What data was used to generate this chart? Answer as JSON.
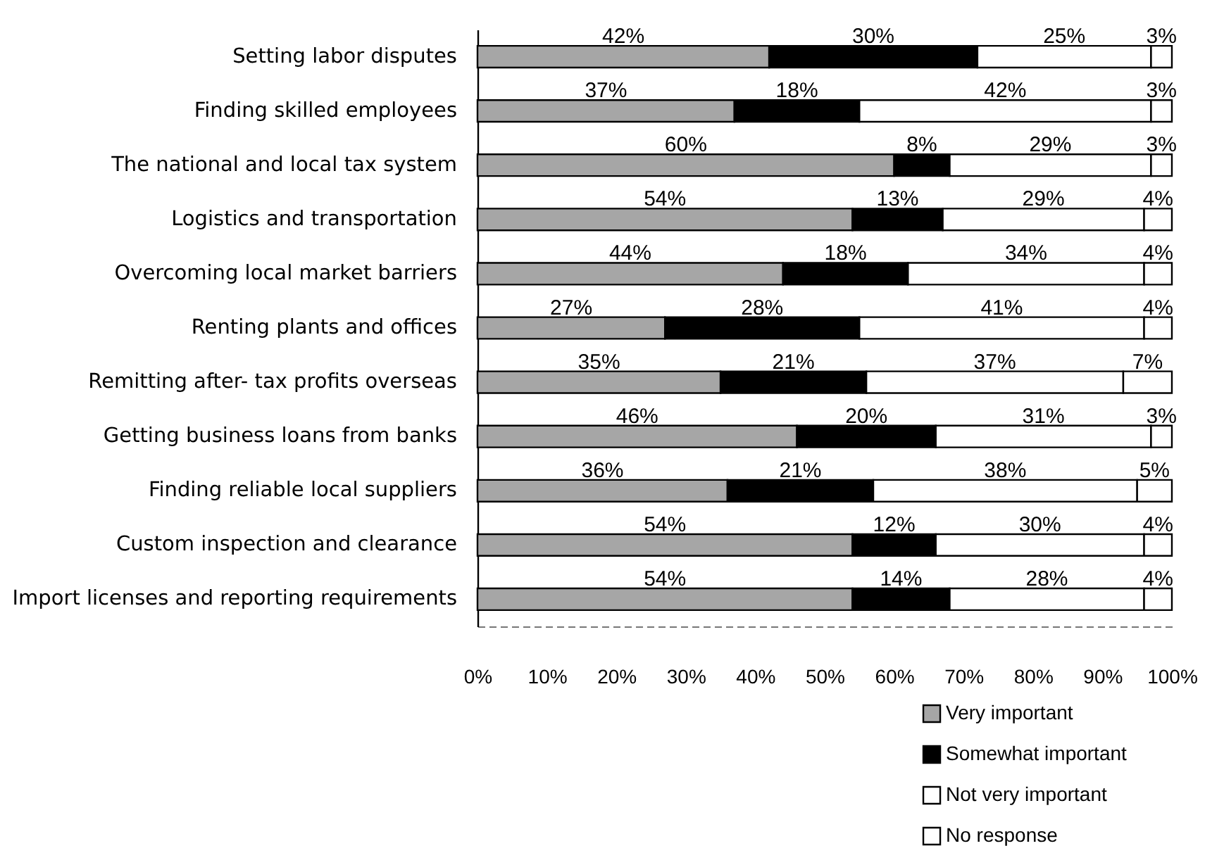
{
  "chart_data": {
    "type": "bar",
    "orientation": "horizontal",
    "stacked": true,
    "categories": [
      "Setting labor disputes",
      "Finding skilled employees",
      "The national and local tax system",
      "Logistics and transportation",
      "Overcoming local market barriers",
      "Renting plants and offices",
      "Remitting after- tax profits overseas",
      "Getting business loans from banks",
      "Finding reliable local suppliers",
      "Custom inspection and clearance",
      "Import licenses and reporting requirements"
    ],
    "series": [
      {
        "name": "Very important",
        "color": "#a6a6a6",
        "values": [
          42,
          37,
          60,
          54,
          44,
          27,
          35,
          46,
          36,
          54,
          54
        ],
        "value_labels": [
          "42%",
          "37%",
          "60%",
          "54%",
          "44%",
          "27%",
          "35%",
          "46%",
          "36%",
          "54%",
          "54%"
        ]
      },
      {
        "name": "Somewhat important",
        "color": "#000000",
        "values": [
          30,
          18,
          8,
          13,
          18,
          28,
          21,
          20,
          21,
          12,
          14
        ],
        "value_labels": [
          "30%",
          "18%",
          "8%",
          "13%",
          "18%",
          "28%",
          "21%",
          "20%",
          "21%",
          "12%",
          "14%"
        ]
      },
      {
        "name": "Not very important",
        "color": "#ffffff",
        "values": [
          25,
          42,
          29,
          29,
          34,
          41,
          37,
          31,
          38,
          30,
          28
        ],
        "value_labels": [
          "25%",
          "42%",
          "29%",
          "29%",
          "34%",
          "41%",
          "37%",
          "31%",
          "38%",
          "30%",
          "28%"
        ]
      },
      {
        "name": "No response",
        "color": "#ffffff",
        "values": [
          3,
          3,
          3,
          4,
          4,
          4,
          7,
          3,
          5,
          4,
          4
        ],
        "value_labels": [
          "3%",
          "3%",
          "3%",
          "4%",
          "4%",
          "4%",
          "7%",
          "3%",
          "5%",
          "4%",
          "4%"
        ]
      }
    ],
    "xlim": [
      0,
      100
    ],
    "xticks": [
      {
        "value": 0,
        "label": "0%"
      },
      {
        "value": 10,
        "label": "10%"
      },
      {
        "value": 20,
        "label": "20%"
      },
      {
        "value": 30,
        "label": "30%"
      },
      {
        "value": 40,
        "label": "40%"
      },
      {
        "value": 50,
        "label": "50%"
      },
      {
        "value": 60,
        "label": "60%"
      },
      {
        "value": 70,
        "label": "70%"
      },
      {
        "value": 80,
        "label": "80%"
      },
      {
        "value": 90,
        "label": "90%"
      },
      {
        "value": 100,
        "label": "100%"
      }
    ],
    "legend": "bottom right"
  }
}
